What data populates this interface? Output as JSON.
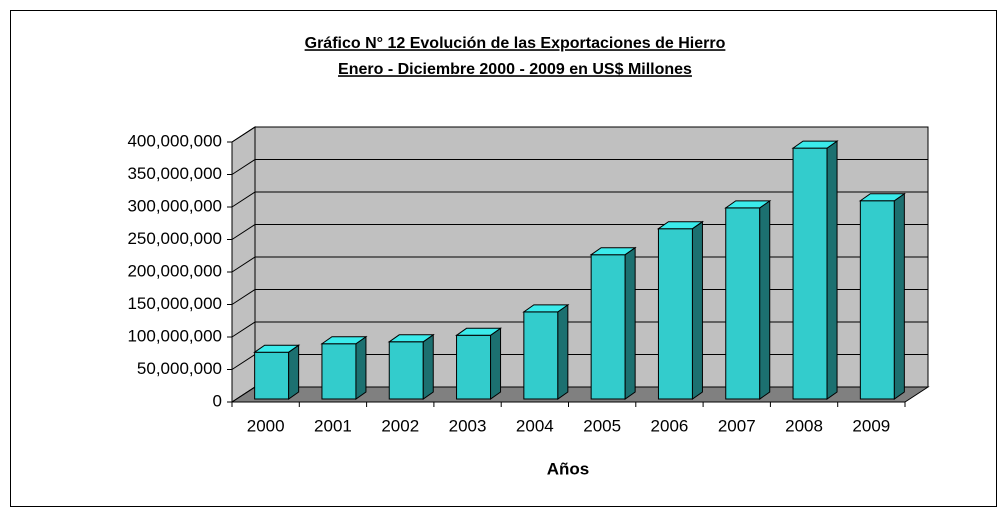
{
  "chart_data": {
    "type": "bar3d",
    "title": "Gráfico N° 12 Evolución de las Exportaciones de Hierro",
    "subtitle": "Enero - Diciembre 2000 - 2009 en US$ Millones",
    "x_label": "Años",
    "categories": [
      "2000",
      "2001",
      "2002",
      "2003",
      "2004",
      "2005",
      "2006",
      "2007",
      "2008",
      "2009"
    ],
    "values": [
      72000000,
      85000000,
      88000000,
      98000000,
      134000000,
      222000000,
      262000000,
      294000000,
      386000000,
      305000000
    ],
    "color": "#33cccc",
    "ylim": [
      0,
      400000000
    ],
    "yticks": [
      0,
      {
        "value": 50000000,
        "label": "50,000,000"
      },
      {
        "value": 100000000,
        "label": "100,000,000"
      },
      {
        "value": 150000000,
        "label": "150,000,000"
      },
      {
        "value": 200000000,
        "label": "200,000,000"
      },
      {
        "value": 250000000,
        "label": "250,000,000"
      },
      {
        "value": 300000000,
        "label": "300,000,000"
      },
      {
        "value": 350000000,
        "label": "350,000,000"
      },
      {
        "value": 400000000,
        "label": "400,000,000"
      }
    ],
    "grid": true
  }
}
